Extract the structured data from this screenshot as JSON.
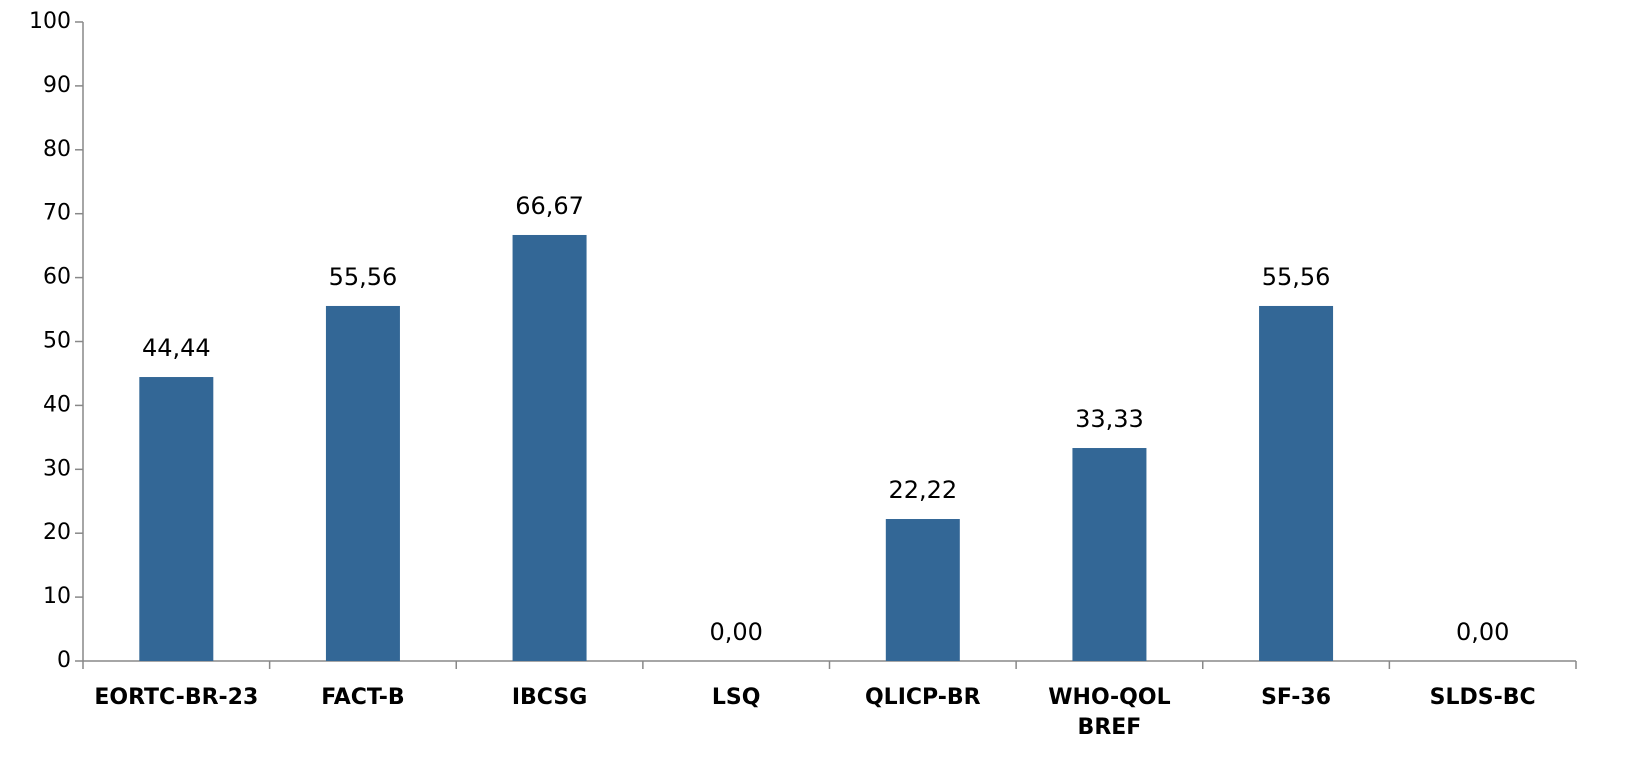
{
  "chart_data": {
    "type": "bar",
    "categories": [
      "EORTC-BR-23",
      "FACT-B",
      "IBCSG",
      "LSQ",
      "QLICP-BR",
      "WHO-QOL BREF",
      "SF-36",
      "SLDS-BC"
    ],
    "values": [
      44.44,
      55.56,
      66.67,
      0,
      22.22,
      33.33,
      55.56,
      0
    ],
    "value_labels": [
      "44,44",
      "55,56",
      "66,67",
      "0,00",
      "22,22",
      "33,33",
      "55,56",
      "0,00"
    ],
    "color": "#336796",
    "ylim": [
      0,
      100
    ],
    "yticks": [
      0,
      10,
      20,
      30,
      40,
      50,
      60,
      70,
      80,
      90,
      100
    ],
    "grid": false
  }
}
